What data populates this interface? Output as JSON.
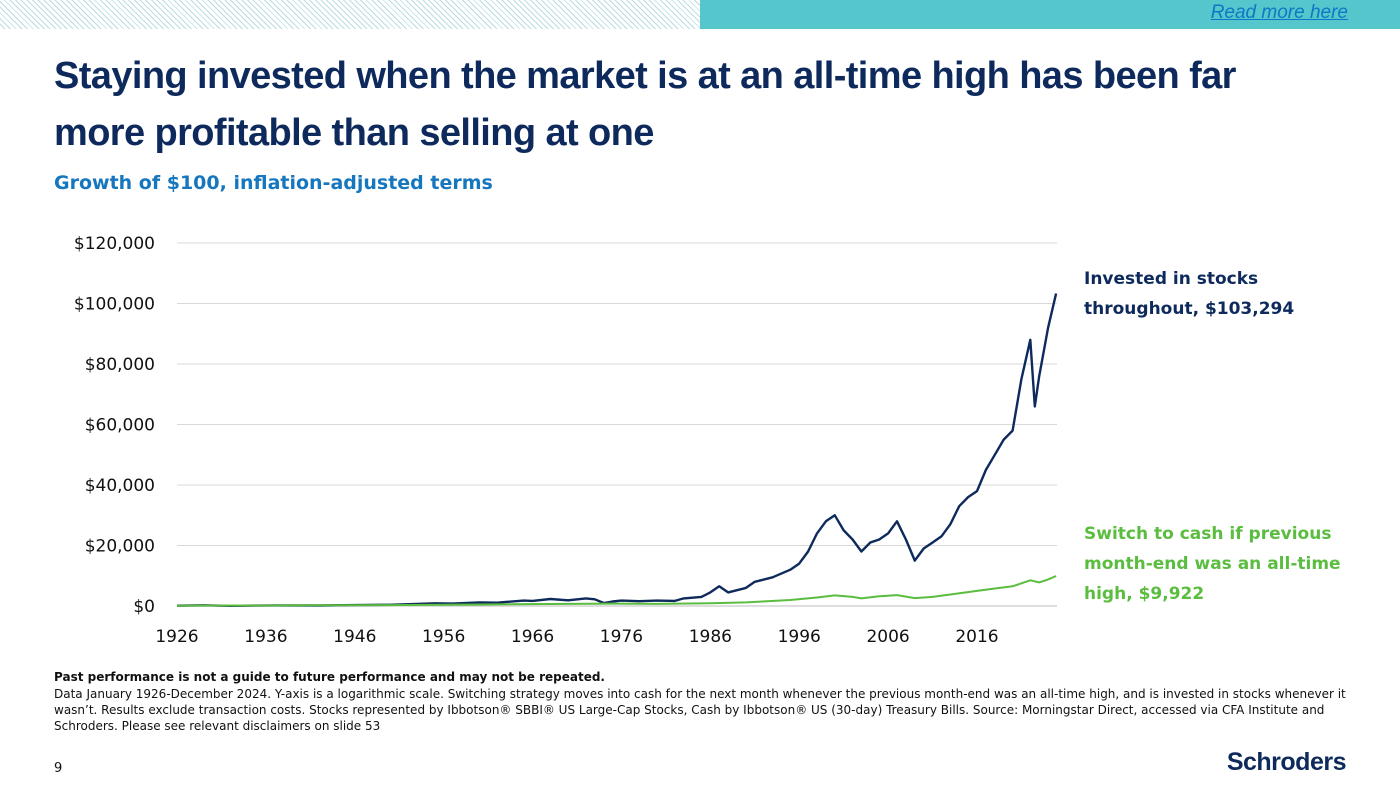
{
  "header": {
    "read_more": "Read more here"
  },
  "title": "Staying invested when the market is at an all-time high has been far more profitable than selling at one",
  "subtitle": "Growth of $100, inflation-adjusted terms",
  "colors": {
    "navy": "#0e2a5c",
    "green": "#5bbd3f",
    "teal": "#54c6cc",
    "subtitle_blue": "#1677bf"
  },
  "chart_data": {
    "type": "line",
    "title": "Growth of $100, inflation-adjusted terms",
    "xlabel": "",
    "ylabel": "",
    "xlim": [
      1926,
      2025
    ],
    "ylim": [
      0,
      120000
    ],
    "grid": true,
    "yticks": [
      0,
      20000,
      40000,
      60000,
      80000,
      100000,
      120000
    ],
    "ytick_labels": [
      "$0",
      "$20,000",
      "$40,000",
      "$60,000",
      "$80,000",
      "$100,000",
      "$120,000"
    ],
    "xticks": [
      1926,
      1936,
      1946,
      1956,
      1966,
      1976,
      1986,
      1996,
      2006,
      2016
    ],
    "xtick_labels": [
      "1926",
      "1936",
      "1946",
      "1956",
      "1966",
      "1976",
      "1986",
      "1996",
      "2006",
      "2016"
    ],
    "series": [
      {
        "name": "Invested in stocks throughout, $103,294",
        "color": "#0e2a5c",
        "points": [
          [
            1926,
            100
          ],
          [
            1929,
            220
          ],
          [
            1932,
            80
          ],
          [
            1937,
            200
          ],
          [
            1942,
            150
          ],
          [
            1946,
            300
          ],
          [
            1950,
            400
          ],
          [
            1955,
            900
          ],
          [
            1957,
            800
          ],
          [
            1960,
            1200
          ],
          [
            1962,
            1100
          ],
          [
            1965,
            1800
          ],
          [
            1966,
            1700
          ],
          [
            1968,
            2300
          ],
          [
            1970,
            1900
          ],
          [
            1972,
            2500
          ],
          [
            1973,
            2200
          ],
          [
            1974,
            1000
          ],
          [
            1975,
            1500
          ],
          [
            1976,
            1800
          ],
          [
            1978,
            1600
          ],
          [
            1980,
            1800
          ],
          [
            1982,
            1700
          ],
          [
            1983,
            2500
          ],
          [
            1985,
            3000
          ],
          [
            1986,
            4500
          ],
          [
            1987,
            6500
          ],
          [
            1988,
            4500
          ],
          [
            1990,
            6000
          ],
          [
            1991,
            8000
          ],
          [
            1993,
            9500
          ],
          [
            1995,
            12000
          ],
          [
            1996,
            14000
          ],
          [
            1997,
            18000
          ],
          [
            1998,
            24000
          ],
          [
            1999,
            28000
          ],
          [
            2000,
            30000
          ],
          [
            2001,
            25000
          ],
          [
            2002,
            22000
          ],
          [
            2003,
            18000
          ],
          [
            2004,
            21000
          ],
          [
            2005,
            22000
          ],
          [
            2006,
            24000
          ],
          [
            2007,
            28000
          ],
          [
            2008,
            22000
          ],
          [
            2009,
            15000
          ],
          [
            2010,
            19000
          ],
          [
            2011,
            21000
          ],
          [
            2012,
            23000
          ],
          [
            2013,
            27000
          ],
          [
            2014,
            33000
          ],
          [
            2015,
            36000
          ],
          [
            2016,
            38000
          ],
          [
            2017,
            45000
          ],
          [
            2018,
            50000
          ],
          [
            2019,
            55000
          ],
          [
            2020,
            58000
          ],
          [
            2021,
            75000
          ],
          [
            2022,
            88000
          ],
          [
            2022.5,
            66000
          ],
          [
            2023,
            76000
          ],
          [
            2024,
            92000
          ],
          [
            2024.9,
            103294
          ]
        ],
        "final_value": "$103,294"
      },
      {
        "name": "Switch to cash if previous month-end was an all-time high, $9,922",
        "color": "#5bbd3f",
        "points": [
          [
            1926,
            100
          ],
          [
            1930,
            150
          ],
          [
            1940,
            200
          ],
          [
            1950,
            300
          ],
          [
            1960,
            500
          ],
          [
            1970,
            700
          ],
          [
            1975,
            800
          ],
          [
            1980,
            700
          ],
          [
            1986,
            900
          ],
          [
            1990,
            1200
          ],
          [
            1995,
            2000
          ],
          [
            1998,
            2800
          ],
          [
            2000,
            3500
          ],
          [
            2002,
            3000
          ],
          [
            2003,
            2500
          ],
          [
            2005,
            3200
          ],
          [
            2007,
            3600
          ],
          [
            2009,
            2600
          ],
          [
            2011,
            3000
          ],
          [
            2013,
            3800
          ],
          [
            2016,
            5000
          ],
          [
            2018,
            5800
          ],
          [
            2020,
            6500
          ],
          [
            2021,
            7500
          ],
          [
            2022,
            8500
          ],
          [
            2023,
            7800
          ],
          [
            2024,
            8800
          ],
          [
            2024.9,
            9922
          ]
        ],
        "final_value": "$9,922"
      }
    ]
  },
  "annotations": {
    "stocks": "Invested in stocks throughout, $103,294",
    "cash": "Switch to cash if previous month-end was an all-time high, $9,922"
  },
  "footnotes": {
    "disclaimer": "Past performance is not a guide to future performance and may not be repeated.",
    "details": "Data January 1926-December 2024. Y-axis is a logarithmic scale. Switching strategy moves into cash for the next month whenever the previous month-end was an all-time high, and is invested in stocks whenever it wasn’t. Results exclude transaction costs. Stocks represented by Ibbotson® SBBI® US Large-Cap Stocks, Cash by Ibbotson® US (30-day) Treasury Bills. Source: Morningstar Direct, accessed via CFA Institute and Schroders. Please see relevant disclaimers on slide 53"
  },
  "page_number": "9",
  "logo": "Schroders"
}
